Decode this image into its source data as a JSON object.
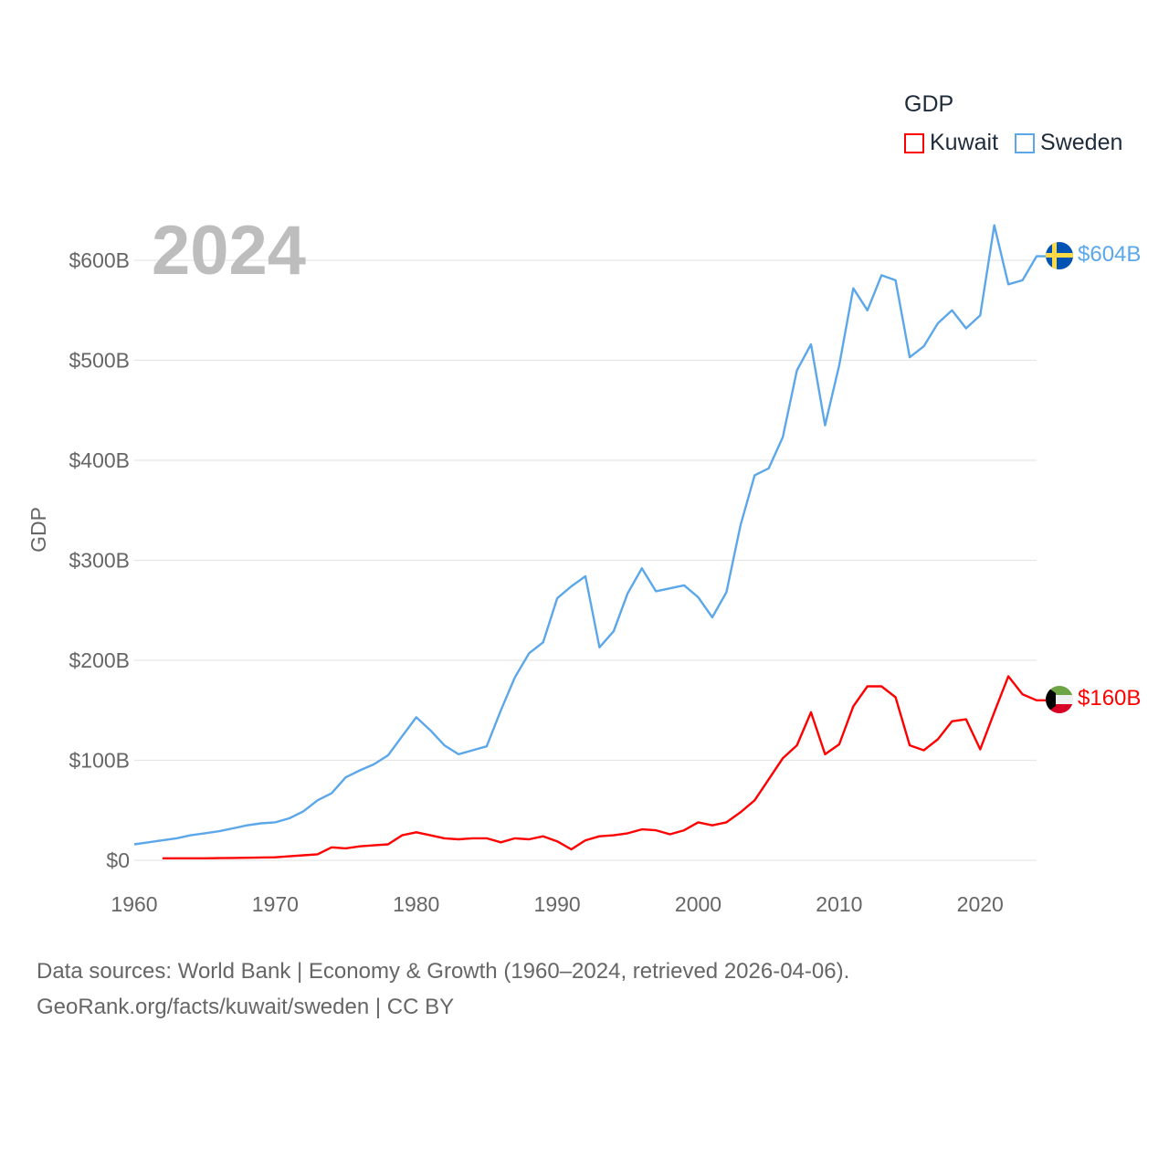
{
  "chart_data": {
    "type": "line",
    "title": "GDP",
    "ylabel": "GDP",
    "xlabel": "",
    "year_label": "2024",
    "xlim": [
      1960,
      2024
    ],
    "ylim": [
      0,
      640
    ],
    "x_ticks": [
      "1960",
      "1970",
      "1980",
      "1990",
      "2000",
      "2010",
      "2020"
    ],
    "y_ticks": [
      {
        "value": 0,
        "label": "$0"
      },
      {
        "value": 100,
        "label": "$100B"
      },
      {
        "value": 200,
        "label": "$200B"
      },
      {
        "value": 300,
        "label": "$300B"
      },
      {
        "value": 400,
        "label": "$400B"
      },
      {
        "value": 500,
        "label": "$500B"
      },
      {
        "value": 600,
        "label": "$600B"
      }
    ],
    "grid": true,
    "legend_position": "top-right",
    "series": [
      {
        "name": "Kuwait",
        "color": "#ff0000",
        "start_year": 1962,
        "end_label": "$160B",
        "flag": "kuwait-flag",
        "values": [
          2,
          2,
          2,
          2,
          2.2,
          2.4,
          2.6,
          2.8,
          3,
          4,
          5,
          6,
          13,
          12,
          14,
          15,
          16,
          25,
          28,
          25,
          22,
          21,
          22,
          22,
          18,
          22,
          21,
          24,
          19,
          11,
          20,
          24,
          25,
          27,
          31,
          30,
          26,
          30,
          38,
          35,
          38,
          48,
          60,
          81,
          102,
          115,
          148,
          106,
          116,
          154,
          174,
          174,
          163,
          115,
          110,
          121,
          139,
          141,
          111,
          148,
          184,
          166,
          160
        ]
      },
      {
        "name": "Sweden",
        "color": "#5ba7ea",
        "start_year": 1960,
        "end_label": "$604B",
        "flag": "sweden-flag",
        "values": [
          16,
          18,
          20,
          22,
          25,
          27,
          29,
          32,
          35,
          37,
          38,
          42,
          49,
          60,
          67,
          83,
          90,
          96,
          105,
          124,
          143,
          130,
          115,
          106,
          110,
          114,
          150,
          183,
          207,
          218,
          262,
          274,
          284,
          213,
          229,
          267,
          292,
          269,
          272,
          275,
          263,
          243,
          268,
          335,
          385,
          392,
          423,
          490,
          516,
          435,
          495,
          572,
          550,
          585,
          580,
          503,
          514,
          537,
          550,
          532,
          545,
          635,
          576,
          580,
          604
        ]
      }
    ]
  },
  "footer": {
    "line1": "Data sources: World Bank | Economy & Growth (1960–2024, retrieved 2026-04-06).",
    "line2": "GeoRank.org/facts/kuwait/sweden | CC BY"
  }
}
